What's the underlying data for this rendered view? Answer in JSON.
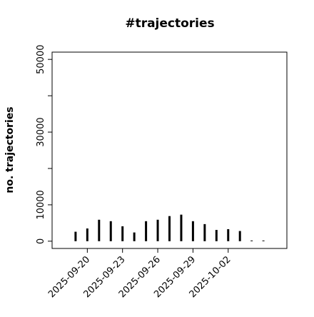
{
  "chart_data": {
    "type": "bar",
    "title": "#trajectories",
    "y_label": "no. trajectories",
    "x": [
      "2025-09-19",
      "2025-09-20",
      "2025-09-21",
      "2025-09-22",
      "2025-09-23",
      "2025-09-24",
      "2025-09-25",
      "2025-09-26",
      "2025-09-27",
      "2025-09-28",
      "2025-09-29",
      "2025-09-30",
      "2025-10-01",
      "2025-10-02",
      "2025-10-03",
      "2025-10-04",
      "2025-10-05"
    ],
    "values": [
      2600,
      3500,
      5900,
      5500,
      4100,
      2400,
      5500,
      5900,
      6900,
      7300,
      5500,
      4700,
      3100,
      3300,
      2800,
      200,
      200
    ],
    "color": "#000000",
    "xlim": [
      "2025-09-17",
      "2025-10-07"
    ],
    "xticks": [
      "2025-09-20",
      "2025-09-23",
      "2025-09-26",
      "2025-09-29",
      "2025-10-02"
    ],
    "ylim": [
      -2000,
      52000
    ],
    "yticks": [
      0,
      10000,
      20000,
      30000,
      40000,
      50000
    ],
    "ytick_labels_shown": [
      0,
      10000,
      30000,
      50000
    ]
  }
}
